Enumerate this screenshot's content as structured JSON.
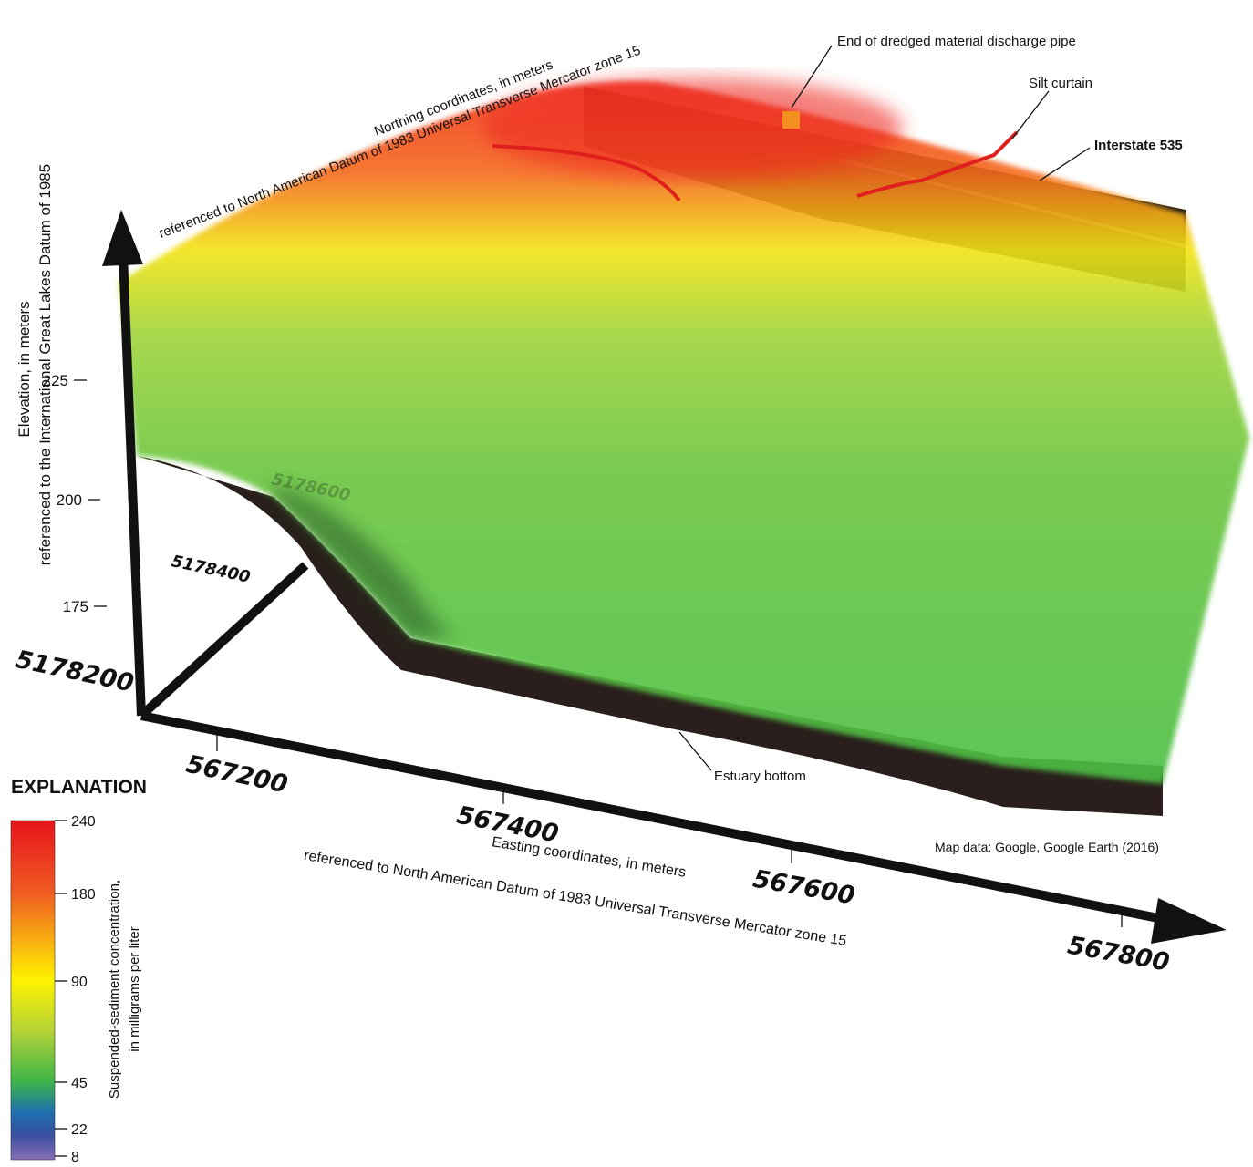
{
  "figure": {
    "annotations": {
      "pipe": "End of dredged material discharge pipe",
      "silt": "Silt curtain",
      "interstate": "Interstate 535",
      "bottom": "Estuary bottom",
      "credit": "Map data: Google, Google Earth (2016)"
    },
    "elevation_axis": {
      "label_1": "Elevation, in meters",
      "label_2": "referenced to the International Great Lakes Datum of 1985",
      "ticks": [
        225,
        200,
        175
      ]
    },
    "northing_axis": {
      "label_1": "Northing coordinates, in meters",
      "label_2": "referenced to North American Datum of 1983 Universal Transverse Mercator zone 15",
      "ticks": [
        5178200,
        5178400,
        5178600
      ]
    },
    "easting_axis": {
      "label_1": "Easting coordinates, in meters",
      "label_2": "referenced to North American Datum of 1983 Universal Transverse Mercator zone 15",
      "ticks": [
        567200,
        567400,
        567600,
        567800
      ]
    },
    "explanation": {
      "title": "EXPLANATION",
      "label_1": "Suspended-sediment concentration,",
      "label_2": "in milligrams per liter",
      "ticks": [
        240,
        180,
        90,
        45,
        22,
        8
      ]
    }
  }
}
